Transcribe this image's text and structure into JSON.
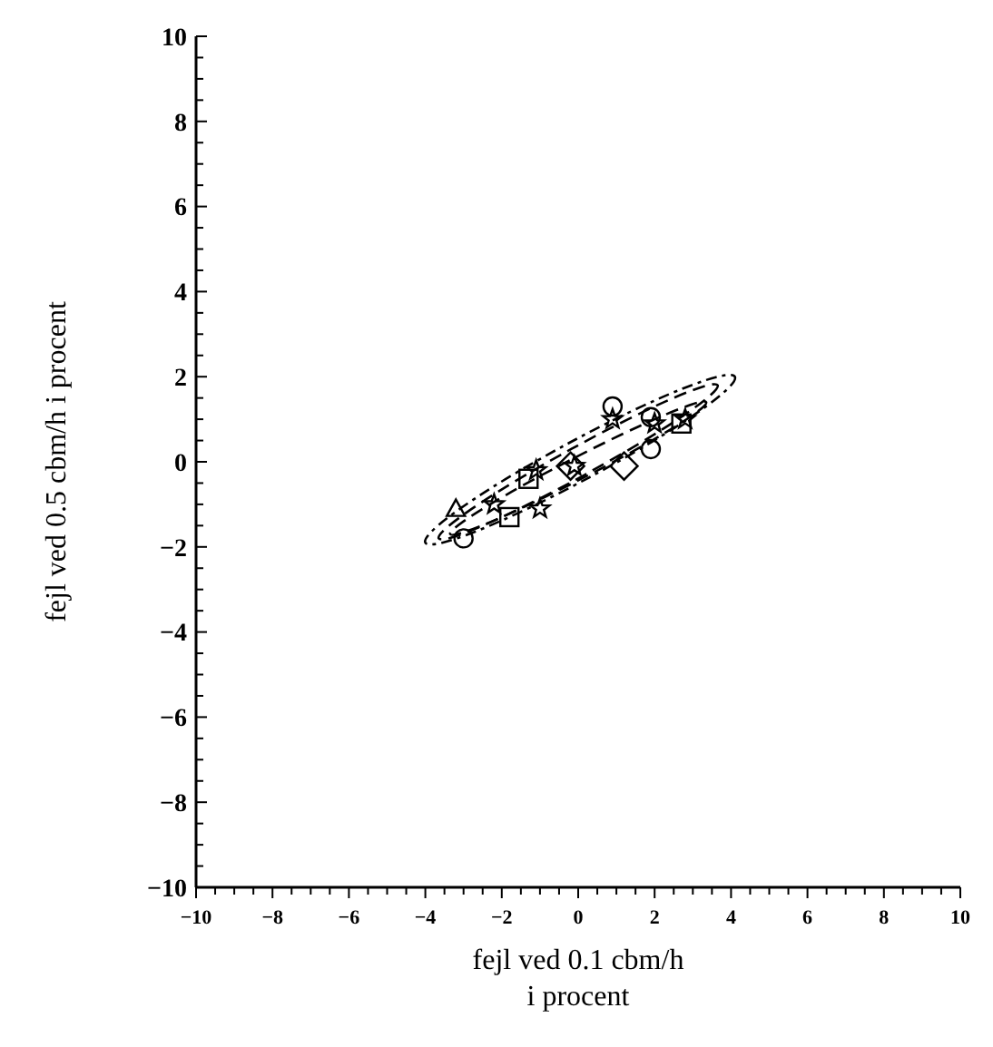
{
  "chart_data": {
    "type": "scatter",
    "xlabel": "fejl ved 0.1 cbm/h\ni procent",
    "ylabel": "fejl ved 0.5 cbm/h i procent",
    "xlim": [
      -10,
      10
    ],
    "ylim": [
      -10,
      10
    ],
    "xticks": [
      {
        "value": -10,
        "label": "−10"
      },
      {
        "value": -9.5,
        "label": null
      },
      {
        "value": -9,
        "label": null
      },
      {
        "value": -8.5,
        "label": null
      },
      {
        "value": -8,
        "label": "−8"
      },
      {
        "value": -7.5,
        "label": null
      },
      {
        "value": -7,
        "label": null
      },
      {
        "value": -6.5,
        "label": null
      },
      {
        "value": -6,
        "label": "−6"
      },
      {
        "value": -5.5,
        "label": null
      },
      {
        "value": -5,
        "label": null
      },
      {
        "value": -4.5,
        "label": null
      },
      {
        "value": -4,
        "label": "−4"
      },
      {
        "value": -3.5,
        "label": null
      },
      {
        "value": -3,
        "label": null
      },
      {
        "value": -2.5,
        "label": null
      },
      {
        "value": -2,
        "label": "−2"
      },
      {
        "value": -1.5,
        "label": null
      },
      {
        "value": -1,
        "label": null
      },
      {
        "value": -0.5,
        "label": null
      },
      0,
      {
        "value": 0.5,
        "label": null
      },
      {
        "value": 1,
        "label": null
      },
      {
        "value": 1.5,
        "label": null
      },
      2,
      {
        "value": 2.5,
        "label": null
      },
      {
        "value": 3,
        "label": null
      },
      {
        "value": 3.5,
        "label": null
      },
      4,
      {
        "value": 4.5,
        "label": null
      },
      {
        "value": 5,
        "label": null
      },
      {
        "value": 5.5,
        "label": null
      },
      6,
      {
        "value": 6.5,
        "label": null
      },
      {
        "value": 7,
        "label": null
      },
      {
        "value": 7.5,
        "label": null
      },
      8,
      {
        "value": 8.5,
        "label": null
      },
      {
        "value": 9,
        "label": null
      },
      {
        "value": 9.5,
        "label": null
      },
      10
    ],
    "yticks": [
      {
        "value": -10,
        "label": "−10"
      },
      {
        "value": -9.5,
        "label": null
      },
      {
        "value": -9,
        "label": null
      },
      {
        "value": -8.5,
        "label": null
      },
      {
        "value": -8,
        "label": "−8"
      },
      {
        "value": -7.5,
        "label": null
      },
      {
        "value": -7,
        "label": null
      },
      {
        "value": -6.5,
        "label": null
      },
      {
        "value": -6,
        "label": "−6"
      },
      {
        "value": -5.5,
        "label": null
      },
      {
        "value": -5,
        "label": null
      },
      {
        "value": -4.5,
        "label": null
      },
      {
        "value": -4,
        "label": "−4"
      },
      {
        "value": -3.5,
        "label": null
      },
      {
        "value": -3,
        "label": null
      },
      {
        "value": -2.5,
        "label": null
      },
      {
        "value": -2,
        "label": "−2"
      },
      {
        "value": -1.5,
        "label": null
      },
      {
        "value": -1,
        "label": null
      },
      {
        "value": -0.5,
        "label": null
      },
      0,
      {
        "value": 0.5,
        "label": null
      },
      {
        "value": 1,
        "label": null
      },
      {
        "value": 1.5,
        "label": null
      },
      2,
      {
        "value": 2.5,
        "label": null
      },
      {
        "value": 3,
        "label": null
      },
      {
        "value": 3.5,
        "label": null
      },
      4,
      {
        "value": 4.5,
        "label": null
      },
      {
        "value": 5,
        "label": null
      },
      {
        "value": 5.5,
        "label": null
      },
      6,
      {
        "value": 6.5,
        "label": null
      },
      {
        "value": 7,
        "label": null
      },
      {
        "value": 7.5,
        "label": null
      },
      8,
      {
        "value": 8.5,
        "label": null
      },
      {
        "value": 9,
        "label": null
      },
      {
        "value": 9.5,
        "label": null
      },
      10
    ],
    "grid": false,
    "series": [
      {
        "marker": "circle",
        "color": "#000000",
        "x": [
          0.9,
          1.9,
          1.9,
          -3.0
        ],
        "values": [
          1.3,
          1.05,
          0.3,
          -1.8
        ]
      },
      {
        "marker": "star",
        "color": "#000000",
        "x": [
          0.9,
          2.0,
          2.8,
          -0.1,
          -1.1,
          -1.0,
          -2.2
        ],
        "values": [
          1.0,
          0.9,
          1.0,
          -0.1,
          -0.2,
          -1.1,
          -1.0
        ]
      },
      {
        "marker": "square",
        "color": "#000000",
        "x": [
          2.7,
          -1.3,
          -1.8
        ],
        "values": [
          0.9,
          -0.4,
          -1.3
        ]
      },
      {
        "marker": "diamond",
        "color": "#000000",
        "x": [
          1.2,
          -0.2
        ],
        "values": [
          -0.1,
          -0.1
        ]
      },
      {
        "marker": "triangle",
        "color": "#000000",
        "x": [
          -3.2
        ],
        "values": [
          -1.1
        ]
      }
    ]
  }
}
